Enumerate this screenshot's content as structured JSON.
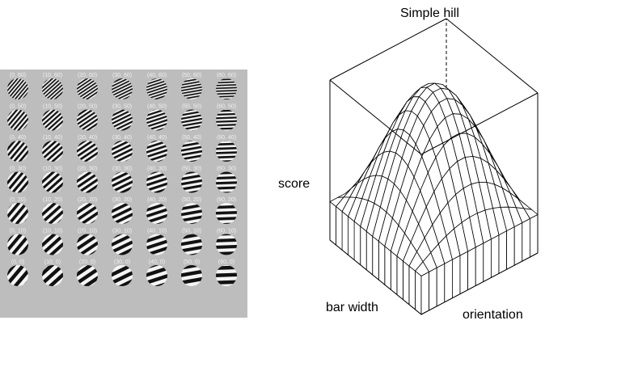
{
  "stimuli": {
    "columns": [
      0,
      10,
      20,
      30,
      40,
      50,
      60
    ],
    "rows": [
      60,
      50,
      40,
      30,
      20,
      10,
      0
    ],
    "panel_color": "#bdbdbd",
    "label_color": "#f0f0f0"
  },
  "surface": {
    "title": "Simple hill",
    "zlabel": "score",
    "xlabel": "bar width",
    "ylabel": "orientation",
    "grid_resolution": 15
  }
}
